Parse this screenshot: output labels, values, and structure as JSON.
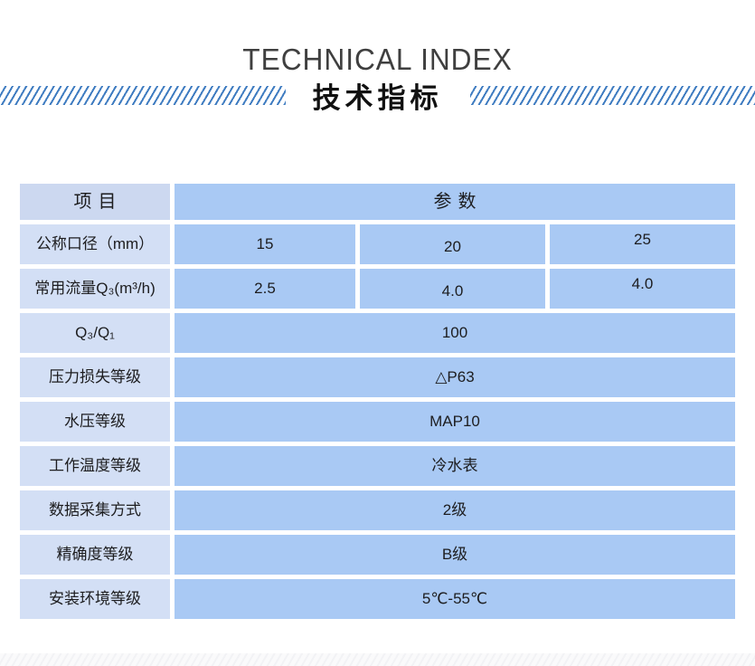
{
  "header": {
    "title_en": "TECHNICAL INDEX",
    "title_zh": "技术指标"
  },
  "table": {
    "header": {
      "item": "项目",
      "params": "参数"
    },
    "rows": [
      {
        "label": "公称口径（mm）",
        "values": [
          "15",
          "20",
          "25"
        ]
      },
      {
        "label": "常用流量Q₃(m³/h)",
        "values": [
          "2.5",
          "4.0",
          "4.0"
        ]
      },
      {
        "label": "Q₃/Q₁",
        "values": [
          "100"
        ]
      },
      {
        "label": "压力损失等级",
        "values": [
          "△P63"
        ]
      },
      {
        "label": "水压等级",
        "values": [
          "MAP10"
        ]
      },
      {
        "label": "工作温度等级",
        "values": [
          "冷水表"
        ]
      },
      {
        "label": "数据采集方式",
        "values": [
          "2级"
        ]
      },
      {
        "label": "精确度等级",
        "values": [
          "B级"
        ]
      },
      {
        "label": "安装环境等级",
        "values": [
          "5℃-55℃"
        ]
      }
    ]
  },
  "colors": {
    "slash_blue": "#3f7cc1",
    "cell_blue": "#a9c9f4",
    "cell_light": "#d3dff5",
    "head_label_bg": "#ccd8f0",
    "title_gray": "#3f3f3f",
    "text_dark": "#1d1d1f"
  }
}
